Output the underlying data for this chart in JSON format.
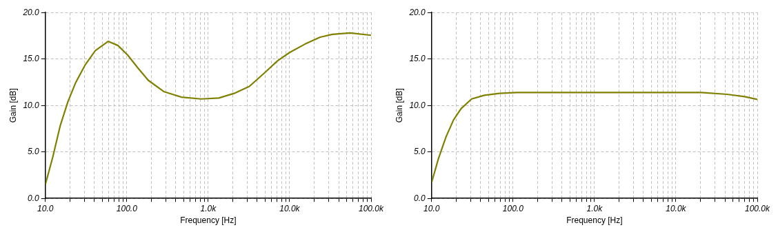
{
  "chart_data": [
    {
      "type": "line",
      "xlabel": "Frequency [Hz]",
      "ylabel": "Gain [dB]",
      "log": "x",
      "grid": true,
      "legend": false,
      "marker": "none",
      "line_style": "solid",
      "xlim": [
        10,
        100000
      ],
      "ylim": [
        0,
        20
      ],
      "xticks": [
        {
          "value": 10,
          "label": "10.0"
        },
        {
          "value": 20,
          "label": null
        },
        {
          "value": 30,
          "label": null
        },
        {
          "value": 40,
          "label": null
        },
        {
          "value": 50,
          "label": null
        },
        {
          "value": 60,
          "label": null
        },
        {
          "value": 70,
          "label": null
        },
        {
          "value": 80,
          "label": null
        },
        {
          "value": 90,
          "label": null
        },
        {
          "value": 100,
          "label": "100.0"
        },
        {
          "value": 200,
          "label": null
        },
        {
          "value": 300,
          "label": null
        },
        {
          "value": 400,
          "label": null
        },
        {
          "value": 500,
          "label": null
        },
        {
          "value": 600,
          "label": null
        },
        {
          "value": 700,
          "label": null
        },
        {
          "value": 800,
          "label": null
        },
        {
          "value": 900,
          "label": null
        },
        {
          "value": 1000,
          "label": "1.0k"
        },
        {
          "value": 2000,
          "label": null
        },
        {
          "value": 3000,
          "label": null
        },
        {
          "value": 4000,
          "label": null
        },
        {
          "value": 5000,
          "label": null
        },
        {
          "value": 6000,
          "label": null
        },
        {
          "value": 7000,
          "label": null
        },
        {
          "value": 8000,
          "label": null
        },
        {
          "value": 9000,
          "label": null
        },
        {
          "value": 10000,
          "label": "10.0k"
        },
        {
          "value": 20000,
          "label": null
        },
        {
          "value": 30000,
          "label": null
        },
        {
          "value": 40000,
          "label": null
        },
        {
          "value": 50000,
          "label": null
        },
        {
          "value": 60000,
          "label": null
        },
        {
          "value": 70000,
          "label": null
        },
        {
          "value": 80000,
          "label": null
        },
        {
          "value": 90000,
          "label": null
        },
        {
          "value": 100000,
          "label": "100.0k"
        }
      ],
      "yticks": [
        {
          "value": 0,
          "label": "0.0"
        },
        {
          "value": 5,
          "label": "5.0"
        },
        {
          "value": 10,
          "label": "10.0"
        },
        {
          "value": 15,
          "label": "15.0"
        },
        {
          "value": 20,
          "label": "20.0"
        }
      ],
      "series": [
        {
          "color": "#808000",
          "x": [
            10,
            12.3,
            15.2,
            18.9,
            23.4,
            31,
            41,
            59,
            78,
            103,
            138,
            184,
            284,
            467,
            820,
            1350,
            2080,
            3200,
            4900,
            7100,
            10000,
            15400,
            23700,
            33600,
            55000,
            100000
          ],
          "values": [
            1.5,
            4.4,
            7.8,
            10.4,
            12.4,
            14.4,
            15.9,
            16.9,
            16.45,
            15.4,
            14.0,
            12.7,
            11.5,
            10.9,
            10.7,
            10.8,
            11.3,
            12.05,
            13.5,
            14.8,
            15.7,
            16.6,
            17.35,
            17.65,
            17.8,
            17.55
          ]
        }
      ]
    },
    {
      "type": "line",
      "xlabel": "Frequency [Hz]",
      "ylabel": "Gain [dB]",
      "log": "x",
      "grid": true,
      "legend": false,
      "marker": "none",
      "line_style": "solid",
      "xlim": [
        10,
        100000
      ],
      "ylim": [
        0,
        20
      ],
      "xticks": [
        {
          "value": 10,
          "label": "10.0"
        },
        {
          "value": 20,
          "label": null
        },
        {
          "value": 30,
          "label": null
        },
        {
          "value": 40,
          "label": null
        },
        {
          "value": 50,
          "label": null
        },
        {
          "value": 60,
          "label": null
        },
        {
          "value": 70,
          "label": null
        },
        {
          "value": 80,
          "label": null
        },
        {
          "value": 90,
          "label": null
        },
        {
          "value": 100,
          "label": "100.0"
        },
        {
          "value": 200,
          "label": null
        },
        {
          "value": 300,
          "label": null
        },
        {
          "value": 400,
          "label": null
        },
        {
          "value": 500,
          "label": null
        },
        {
          "value": 600,
          "label": null
        },
        {
          "value": 700,
          "label": null
        },
        {
          "value": 800,
          "label": null
        },
        {
          "value": 900,
          "label": null
        },
        {
          "value": 1000,
          "label": "1.0k"
        },
        {
          "value": 2000,
          "label": null
        },
        {
          "value": 3000,
          "label": null
        },
        {
          "value": 4000,
          "label": null
        },
        {
          "value": 5000,
          "label": null
        },
        {
          "value": 6000,
          "label": null
        },
        {
          "value": 7000,
          "label": null
        },
        {
          "value": 8000,
          "label": null
        },
        {
          "value": 9000,
          "label": null
        },
        {
          "value": 10000,
          "label": "10.0k"
        },
        {
          "value": 20000,
          "label": null
        },
        {
          "value": 30000,
          "label": null
        },
        {
          "value": 40000,
          "label": null
        },
        {
          "value": 50000,
          "label": null
        },
        {
          "value": 60000,
          "label": null
        },
        {
          "value": 70000,
          "label": null
        },
        {
          "value": 80000,
          "label": null
        },
        {
          "value": 90000,
          "label": null
        },
        {
          "value": 100000,
          "label": "100.0k"
        }
      ],
      "yticks": [
        {
          "value": 0,
          "label": "0.0"
        },
        {
          "value": 5,
          "label": "5.0"
        },
        {
          "value": 10,
          "label": "10.0"
        },
        {
          "value": 15,
          "label": "15.0"
        },
        {
          "value": 20,
          "label": "20.0"
        }
      ],
      "series": [
        {
          "color": "#808000",
          "x": [
            10,
            12.1,
            15,
            18.6,
            23,
            31,
            44.5,
            68,
            112,
            1000,
            20500,
            42600,
            70000,
            100000
          ],
          "values": [
            1.7,
            4.25,
            6.6,
            8.45,
            9.65,
            10.7,
            11.1,
            11.3,
            11.4,
            11.4,
            11.4,
            11.2,
            10.95,
            10.65
          ]
        }
      ]
    }
  ]
}
